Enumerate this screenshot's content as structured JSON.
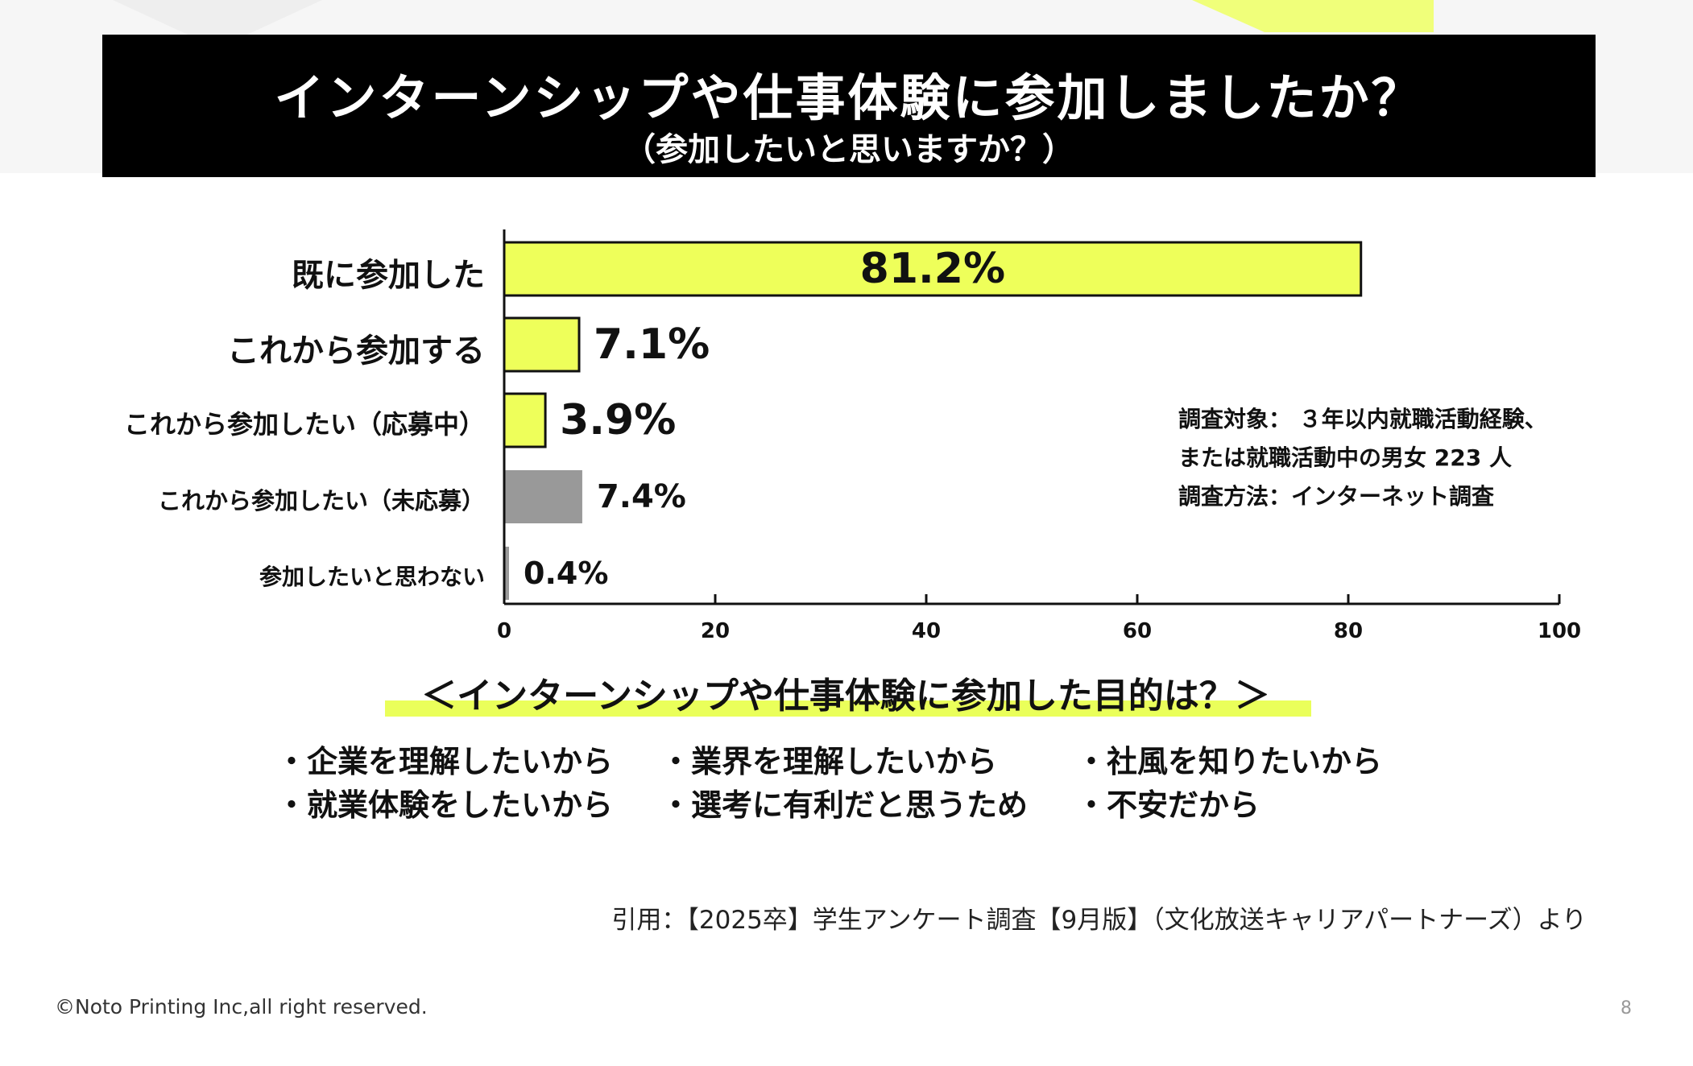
{
  "header": {
    "title": "インターンシップや仕事体験に参加しましたか？",
    "subtitle": "（参加したいと思いますか？）"
  },
  "colors": {
    "accent": "#eeff5a",
    "gray_bar": "#999999",
    "title_bg": "#000000"
  },
  "chart_data": {
    "type": "bar",
    "orientation": "horizontal",
    "categories": [
      "既に参加した",
      "これから参加する",
      "これから参加したい（応募中）",
      "これから参加したい（未応募）",
      "参加したいと思わない"
    ],
    "values": [
      81.2,
      7.1,
      3.9,
      7.4,
      0.4
    ],
    "value_labels": [
      "81.2%",
      "7.1%",
      "3.9%",
      "7.4%",
      "0.4%"
    ],
    "bar_colors": [
      "#eeff5a",
      "#eeff5a",
      "#eeff5a",
      "#999999",
      "#999999"
    ],
    "xlim": [
      0,
      100
    ],
    "xticks": [
      "0",
      "20",
      "40",
      "60",
      "80",
      "100"
    ],
    "xlabel": "",
    "ylabel": "",
    "grid": false
  },
  "survey_note": {
    "line1": "調査対象： ３年以内就職活動経験、",
    "line2": "または就職活動中の男女 223 人",
    "line3": "調査方法：インターネット調査"
  },
  "purpose": {
    "title": "＜インターンシップや仕事体験に参加した目的は？＞",
    "items": [
      "・企業を理解したいから",
      "・業界を理解したいから",
      "・社風を知りたいから",
      "・就業体験をしたいから",
      "・選考に有利だと思うため",
      "・不安だから"
    ]
  },
  "citation": "引用：【2025卒】学生アンケート調査【9月版】（文化放送キャリアパートナーズ）より",
  "footer": {
    "copyright": "©Noto Printing Inc,all right reserved.",
    "page_number": "8"
  }
}
